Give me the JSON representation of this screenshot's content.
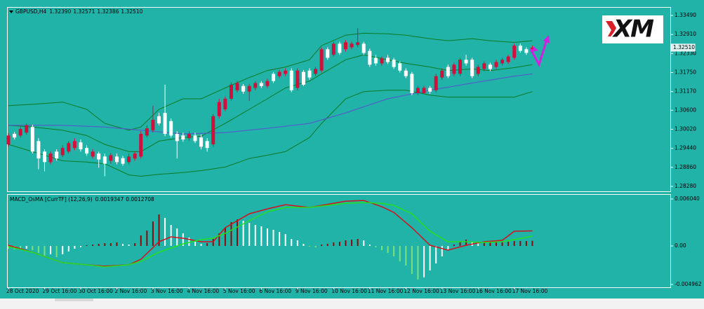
{
  "chart_data": [
    {
      "type": "candlestick",
      "title": "GBPUSD,H4",
      "ohlc_labels": [
        "1.32390",
        "1.32571",
        "1.32386",
        "1.32510"
      ],
      "last_price_label": "1.32510",
      "categories": [
        "28 Oct 2020",
        null,
        null,
        null,
        null,
        null,
        "29 Oct 16:00",
        null,
        null,
        null,
        null,
        null,
        "30 Oct 16:00",
        null,
        null,
        null,
        null,
        null,
        "2 Nov 16:00",
        null,
        null,
        null,
        null,
        null,
        "3 Nov 16:00",
        null,
        null,
        null,
        null,
        null,
        "4 Nov 16:00",
        null,
        null,
        null,
        null,
        null,
        "5 Nov 16:00",
        null,
        null,
        null,
        null,
        null,
        "6 Nov 16:00",
        null,
        null,
        null,
        null,
        null,
        "9 Nov 16:00",
        null,
        null,
        null,
        null,
        null,
        "10 Nov 16:00",
        null,
        null,
        null,
        null,
        null,
        "11 Nov 16:00",
        null,
        null,
        null,
        null,
        null,
        "12 Nov 16:00",
        null,
        null,
        null,
        null,
        null,
        "13 Nov 16:00",
        null,
        null,
        null,
        null,
        null,
        "16 Nov 16:00",
        null,
        null,
        null,
        null,
        null,
        "17 Nov 16:00",
        null,
        null,
        null
      ],
      "open": [
        1.2956,
        1.2988,
        1.2983,
        1.2992,
        1.3009,
        1.2966,
        1.2934,
        1.2902,
        1.2934,
        1.2923,
        1.2934,
        1.2945,
        1.2962,
        1.2945,
        1.2919,
        1.2928,
        1.2919,
        1.2906,
        1.2919,
        1.2914,
        1.2902,
        1.2913,
        1.2919,
        1.2983,
        1.2999,
        1.3042,
        1.3052,
        1.3027,
        1.2988,
        1.2983,
        1.2975,
        1.2983,
        1.2977,
        1.2966,
        1.2956,
        1.3042,
        1.3063,
        1.3095,
        1.3121,
        1.3134,
        1.3117,
        1.3128,
        1.3143,
        1.3134,
        1.3171,
        1.3164,
        1.3171,
        1.3181,
        1.3128,
        1.3177,
        1.3181,
        1.3171,
        1.3181,
        1.3246,
        1.3229,
        1.3263,
        1.3246,
        1.3252,
        1.3259,
        1.3263,
        1.3241,
        1.322,
        1.3203,
        1.322,
        1.3214,
        1.3203,
        1.3181,
        1.3171,
        1.3112,
        1.3112,
        1.3128,
        1.3121,
        1.316,
        1.3192,
        1.3171,
        1.3171,
        1.3214,
        1.3214,
        1.3171,
        1.3186,
        1.3199,
        1.3192,
        1.3203,
        1.3207,
        1.322,
        1.3257,
        1.3246,
        1.3239
      ],
      "high": [
        1.299,
        1.2994,
        1.3009,
        1.302,
        1.3016,
        1.2975,
        1.2941,
        1.2934,
        1.2941,
        1.2953,
        1.2966,
        1.2975,
        1.2971,
        1.2953,
        1.2941,
        1.2934,
        1.2928,
        1.293,
        1.2928,
        1.2921,
        1.2928,
        1.2934,
        1.2996,
        1.3014,
        1.3074,
        1.3052,
        1.3138,
        1.3035,
        1.2996,
        1.2992,
        1.2996,
        1.2992,
        1.2986,
        1.2975,
        1.3048,
        1.3095,
        1.3102,
        1.3145,
        1.3149,
        1.314,
        1.314,
        1.3149,
        1.3149,
        1.3156,
        1.3177,
        1.3183,
        1.3188,
        1.3188,
        1.3188,
        1.3183,
        1.3188,
        1.3192,
        1.3252,
        1.3252,
        1.3269,
        1.3269,
        1.3274,
        1.3269,
        1.331,
        1.3269,
        1.3248,
        1.3229,
        1.3224,
        1.3229,
        1.322,
        1.3209,
        1.3188,
        1.3177,
        1.3134,
        1.3134,
        1.3134,
        1.3171,
        1.3188,
        1.3199,
        1.3205,
        1.322,
        1.3229,
        1.322,
        1.3199,
        1.3209,
        1.3205,
        1.3214,
        1.322,
        1.3229,
        1.3263,
        1.3263,
        1.3252,
        1.32571
      ],
      "low": [
        1.2949,
        1.2971,
        1.2977,
        1.2986,
        1.2928,
        1.288,
        1.2874,
        1.2895,
        1.2906,
        1.2917,
        1.2928,
        1.2938,
        1.2934,
        1.2921,
        1.2913,
        1.2885,
        1.2859,
        1.2897,
        1.2895,
        1.2891,
        1.2895,
        1.2906,
        1.2913,
        1.2977,
        1.2992,
        1.3014,
        1.2981,
        1.2977,
        1.2913,
        1.2964,
        1.2968,
        1.296,
        1.2941,
        1.2934,
        1.2949,
        1.3035,
        1.3057,
        1.3089,
        1.3115,
        1.311,
        1.3089,
        1.3121,
        1.3128,
        1.3128,
        1.3143,
        1.3158,
        1.3164,
        1.3115,
        1.3121,
        1.3134,
        1.3153,
        1.3164,
        1.3175,
        1.3214,
        1.3224,
        1.3229,
        1.3239,
        1.3246,
        1.3252,
        1.3229,
        1.3192,
        1.3196,
        1.3196,
        1.3201,
        1.3186,
        1.3175,
        1.3158,
        1.3106,
        1.3106,
        1.311,
        1.311,
        1.3115,
        1.3153,
        1.3158,
        1.3164,
        1.3164,
        1.3196,
        1.3158,
        1.3164,
        1.3179,
        1.3179,
        1.3186,
        1.3196,
        1.3201,
        1.3214,
        1.3235,
        1.3229,
        1.32386
      ],
      "close": [
        1.2983,
        1.2977,
        1.3003,
        1.3014,
        1.2934,
        1.2913,
        1.2902,
        1.2928,
        1.2913,
        1.2945,
        1.296,
        1.2966,
        1.2941,
        1.2928,
        1.2934,
        1.291,
        1.2897,
        1.2923,
        1.2902,
        1.2897,
        1.2919,
        1.2928,
        1.2988,
        1.3005,
        1.3031,
        1.302,
        1.2988,
        1.2983,
        1.2966,
        1.2971,
        1.2988,
        1.2966,
        1.2949,
        1.2945,
        1.3042,
        1.3085,
        1.3095,
        1.3138,
        1.3143,
        1.3117,
        1.3134,
        1.3143,
        1.3134,
        1.3149,
        1.3149,
        1.3177,
        1.3181,
        1.3121,
        1.3181,
        1.3138,
        1.316,
        1.3186,
        1.3246,
        1.322,
        1.3263,
        1.3235,
        1.3267,
        1.3263,
        1.3267,
        1.3235,
        1.3199,
        1.3203,
        1.3218,
        1.3207,
        1.3192,
        1.3181,
        1.3164,
        1.3112,
        1.3128,
        1.3128,
        1.3117,
        1.3164,
        1.3181,
        1.3164,
        1.3199,
        1.3214,
        1.3203,
        1.3164,
        1.3192,
        1.3203,
        1.3186,
        1.3207,
        1.3214,
        1.3224,
        1.3257,
        1.3241,
        1.3235,
        1.3251
      ],
      "up_color": "#d0103a",
      "down_color": "#ffffff",
      "lines": [
        {
          "color": "#0b7a22",
          "x": [
            0,
            4,
            9,
            13,
            16,
            20,
            22,
            25,
            29,
            32,
            36,
            40,
            43,
            46,
            50,
            52,
            56,
            59,
            63,
            66,
            70,
            73,
            77,
            80,
            84,
            87
          ],
          "values": [
            1.3074,
            1.3078,
            1.3085,
            1.3063,
            1.302,
            1.2999,
            1.3009,
            1.3063,
            1.3095,
            1.3095,
            1.3128,
            1.316,
            1.3181,
            1.3192,
            1.3214,
            1.3257,
            1.3289,
            1.3295,
            1.3293,
            1.3289,
            1.3278,
            1.3272,
            1.3278,
            1.3272,
            1.3267,
            1.3272
          ]
        },
        {
          "color": "#0b7a22",
          "x": [
            0,
            4,
            9,
            13,
            16,
            20,
            22,
            25,
            29,
            32,
            36,
            40,
            43,
            46,
            50,
            52,
            56,
            59,
            63,
            66,
            70,
            73,
            77,
            80,
            84,
            87
          ],
          "values": [
            1.3014,
            1.3009,
            1.2999,
            1.2983,
            1.2956,
            1.2934,
            1.2934,
            1.2966,
            1.2977,
            1.2981,
            1.302,
            1.3063,
            1.3095,
            1.3128,
            1.3149,
            1.3171,
            1.3214,
            1.3229,
            1.3214,
            1.3203,
            1.3192,
            1.3181,
            1.3186,
            1.3181,
            1.319,
            1.3199
          ]
        },
        {
          "color": "#0b7a22",
          "x": [
            0,
            4,
            9,
            13,
            16,
            20,
            22,
            25,
            29,
            32,
            36,
            40,
            43,
            46,
            50,
            52,
            56,
            59,
            63,
            66,
            70,
            73,
            77,
            80,
            84,
            87
          ],
          "values": [
            1.2956,
            1.2934,
            1.2906,
            1.2902,
            1.2897,
            1.2863,
            1.2859,
            1.2865,
            1.287,
            1.2876,
            1.2887,
            1.2913,
            1.2923,
            1.2934,
            1.2977,
            1.302,
            1.3095,
            1.3117,
            1.3121,
            1.3121,
            1.3106,
            1.31,
            1.31,
            1.31,
            1.31,
            1.3117
          ]
        },
        {
          "color": "#5b4fd0",
          "x": [
            0,
            9,
            16,
            22,
            29,
            36,
            43,
            50,
            56,
            63,
            70,
            77,
            84,
            87
          ],
          "values": [
            1.3014,
            1.3014,
            1.3009,
            1.2999,
            1.2988,
            1.2992,
            1.3005,
            1.302,
            1.3052,
            1.3095,
            1.3121,
            1.3143,
            1.3164,
            1.3171
          ]
        }
      ],
      "ylim": [
        1.2813,
        1.33748
      ],
      "yticks": [
        {
          "value": 1.3349,
          "label": "1.33490"
        },
        {
          "value": 1.3291,
          "label": "1.32910"
        },
        {
          "value": 1.3233,
          "label": "1.32330"
        },
        {
          "value": 1.3175,
          "label": "1.31750"
        },
        {
          "value": 1.3117,
          "label": "1.31170"
        },
        {
          "value": 1.306,
          "label": "1.30600"
        },
        {
          "value": 1.3002,
          "label": "1.30020"
        },
        {
          "value": 1.2944,
          "label": "1.29440"
        },
        {
          "value": 1.2886,
          "label": "1.28860"
        },
        {
          "value": 1.2828,
          "label": "1.28280"
        }
      ]
    },
    {
      "type": "macd",
      "title": "MACD_OsMA [CurrTF] (12,26,9)",
      "histogram": [
        -0.00036,
        -0.00045,
        -0.00045,
        -0.00036,
        -0.00054,
        -0.0009,
        -0.00126,
        -0.00108,
        -0.00144,
        -0.00108,
        -0.00072,
        -0.00036,
        -0.00018,
        9e-05,
        0.00018,
        0.00027,
        0.00036,
        0.00036,
        0.00045,
        0.00027,
        0.00018,
        0.00036,
        0.00135,
        0.00198,
        0.00315,
        0.00405,
        0.0036,
        0.0027,
        0.00225,
        0.00162,
        0.00108,
        0.00054,
        0.00027,
        0.00036,
        0.0009,
        0.00162,
        0.00234,
        0.00306,
        0.00342,
        0.00324,
        0.00297,
        0.0027,
        0.00252,
        0.00225,
        0.00207,
        0.0018,
        0.00153,
        0.0009,
        0.00072,
        0.00027,
        -9e-05,
        -0.00018,
        0.00018,
        0.00027,
        0.00045,
        0.00054,
        0.00072,
        0.00081,
        0.0009,
        0.00072,
        0.00018,
        -0.00018,
        -0.00054,
        -0.0009,
        -0.00135,
        -0.00198,
        -0.00252,
        -0.0036,
        -0.00432,
        -0.00405,
        -0.00315,
        -0.00225,
        -0.00135,
        -0.00045,
        0.00018,
        0.00054,
        0.00081,
        0.00054,
        0.00036,
        0.00045,
        0.00045,
        0.00045,
        0.00054,
        0.00054,
        0.00063,
        0.00063,
        0.00063,
        0.00066
      ],
      "rise_color": "#8b0a0a",
      "fall_color": "#7be27b",
      "neutral_color": "#ffffff",
      "series": [
        {
          "color": "#d4101c",
          "x": [
            0,
            4,
            9,
            13,
            16,
            20,
            22,
            25,
            27,
            29,
            32,
            34,
            36,
            40,
            43,
            46,
            50,
            52,
            56,
            59,
            62,
            64,
            67,
            70,
            73,
            76,
            79,
            82,
            84,
            87
          ],
          "values": [
            9e-05,
            -0.00081,
            -0.00216,
            -0.00243,
            -0.00261,
            -0.00243,
            -0.00171,
            0.00054,
            0.00117,
            0.00099,
            0.00054,
            0.00054,
            0.00234,
            0.00414,
            0.00477,
            0.00531,
            0.00495,
            0.00522,
            0.00576,
            0.00585,
            0.00504,
            0.00432,
            0.00234,
            9e-05,
            -0.00054,
            9e-05,
            0.00054,
            0.00072,
            0.00189,
            0.0019347
          ]
        },
        {
          "color": "#22e022",
          "x": [
            0,
            4,
            9,
            13,
            16,
            20,
            22,
            25,
            29,
            32,
            34,
            36,
            40,
            43,
            46,
            50,
            52,
            56,
            59,
            62,
            64,
            67,
            70,
            73,
            76,
            79,
            82,
            84,
            87
          ],
          "values": [
            -9e-05,
            -0.00081,
            -0.00216,
            -0.00243,
            -0.0027,
            -0.00243,
            -0.00198,
            -0.00081,
            0.00027,
            0.00081,
            0.00099,
            0.00162,
            0.00324,
            0.00441,
            0.00495,
            0.00495,
            0.00513,
            0.00549,
            0.00558,
            0.00549,
            0.00522,
            0.00414,
            0.00189,
            0.00054,
            0.00054,
            0.00045,
            0.00054,
            0.00081,
            0.0012708
          ]
        }
      ],
      "ylim": [
        -0.00532,
        0.00658
      ],
      "yticks": [
        {
          "value": 0.00604,
          "label": "0.006040"
        },
        {
          "value": 0,
          "label": "0.00"
        },
        {
          "value": -0.004962,
          "label": "-0.004962"
        }
      ]
    }
  ],
  "logo": "XM"
}
